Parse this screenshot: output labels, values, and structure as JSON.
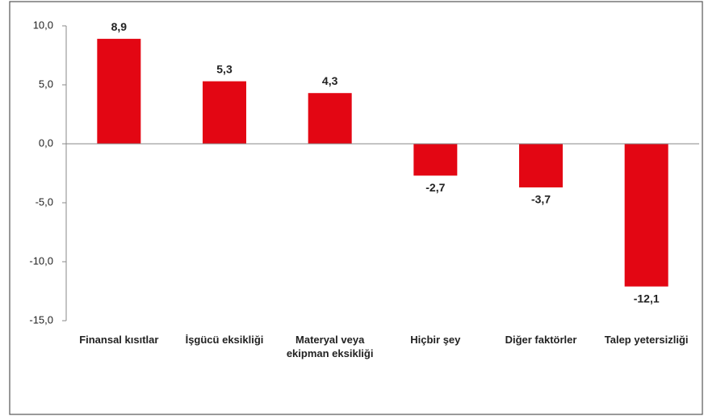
{
  "chart_data": {
    "type": "bar",
    "categories": [
      "Finansal kısıtlar",
      "İşgücü eksikliği",
      "Materyal veya ekipman eksikliği",
      "Hiçbir şey",
      "Diğer faktörler",
      "Talep yetersizliği"
    ],
    "values": [
      8.9,
      5.3,
      4.3,
      -2.7,
      -3.7,
      -12.1
    ],
    "value_labels": [
      "8,9",
      "5,3",
      "4,3",
      "-2,7",
      "-3,7",
      "-12,1"
    ],
    "color": "#e30613",
    "ylim": [
      -15,
      10
    ],
    "yticks": [
      {
        "value": -15,
        "label": "-15,0"
      },
      {
        "value": -10,
        "label": "-10,0"
      },
      {
        "value": -5,
        "label": "-5,0"
      },
      {
        "value": 0,
        "label": "0,0"
      },
      {
        "value": 5,
        "label": "5,0"
      },
      {
        "value": 10,
        "label": "10,0"
      }
    ],
    "grid": false
  }
}
